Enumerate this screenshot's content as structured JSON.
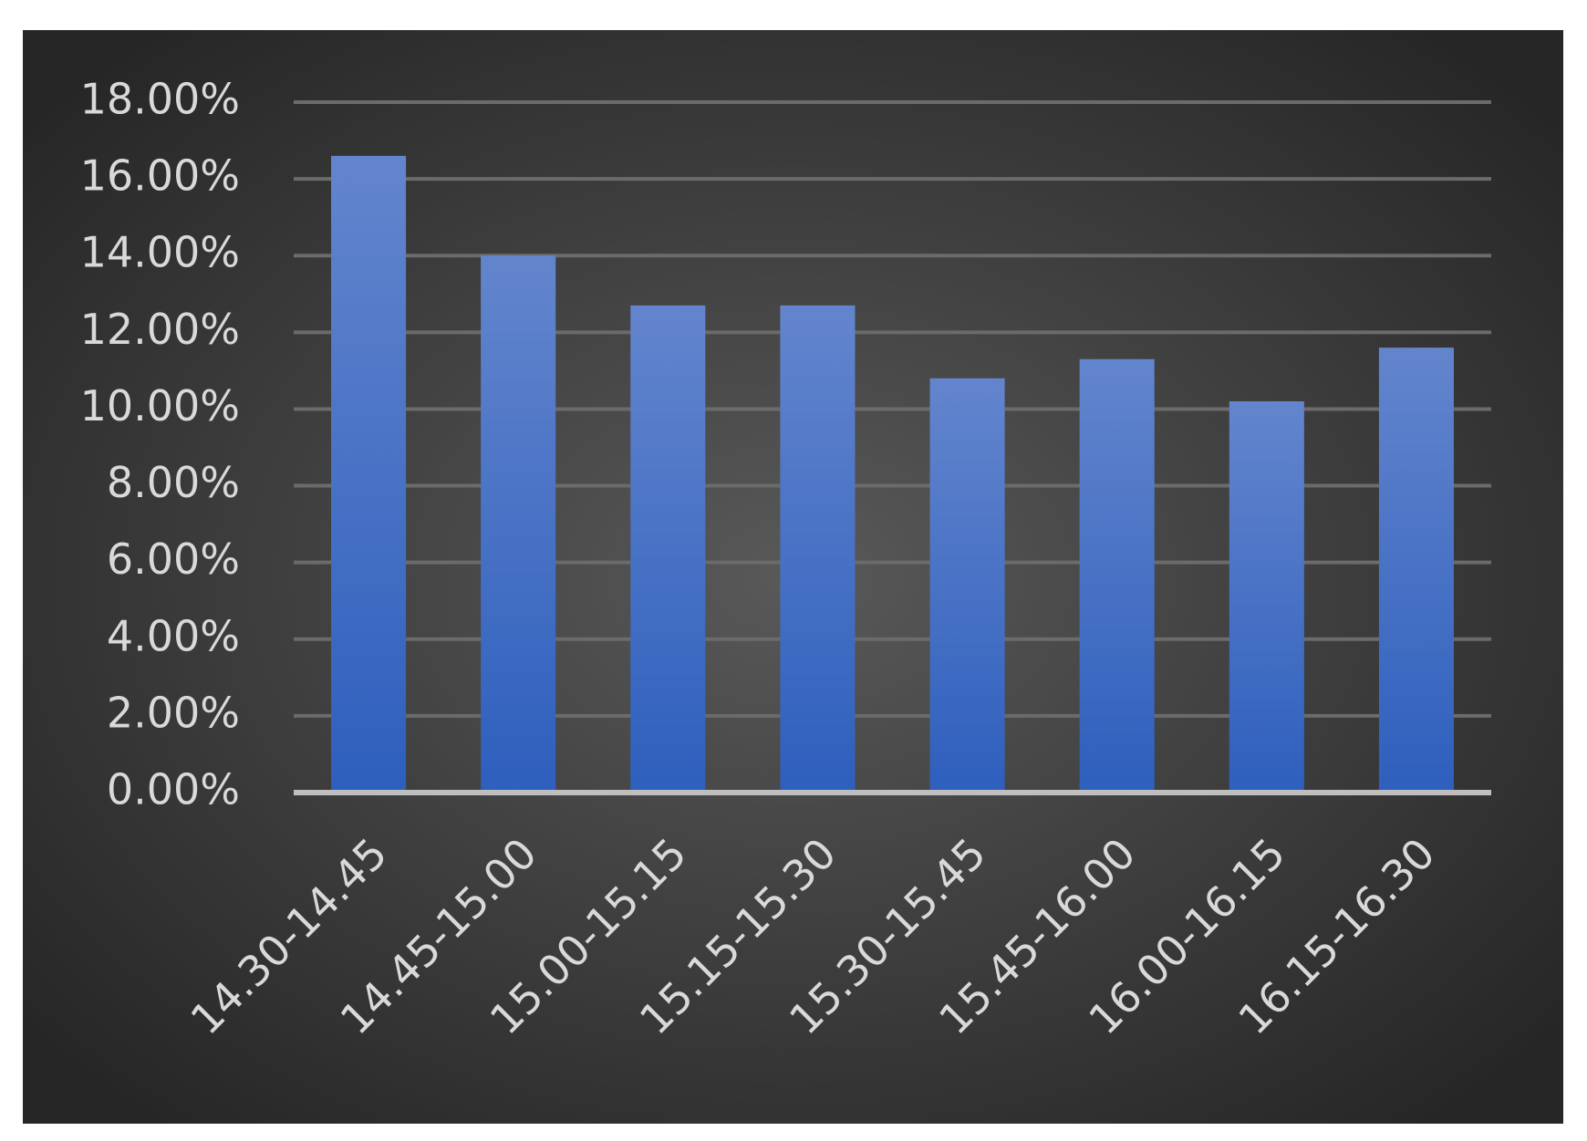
{
  "chart_data": {
    "type": "bar",
    "categories": [
      "14.30-14.45",
      "14.45-15.00",
      "15.00-15.15",
      "15.15-15.30",
      "15.30-15.45",
      "15.45-16.00",
      "16.00-16.15",
      "16.15-16.30"
    ],
    "values": [
      16.6,
      14.0,
      12.7,
      12.7,
      10.8,
      11.3,
      10.2,
      11.6
    ],
    "color": "#4472c4",
    "ylim": [
      0,
      18
    ],
    "yticks": [
      {
        "value": 0,
        "label": "0.00%"
      },
      {
        "value": 2,
        "label": "2.00%"
      },
      {
        "value": 4,
        "label": "4.00%"
      },
      {
        "value": 6,
        "label": "6.00%"
      },
      {
        "value": 8,
        "label": "8.00%"
      },
      {
        "value": 10,
        "label": "10.00%"
      },
      {
        "value": 12,
        "label": "12.00%"
      },
      {
        "value": 14,
        "label": "14.00%"
      },
      {
        "value": 16,
        "label": "16.00%"
      },
      {
        "value": 18,
        "label": "18.00%"
      }
    ],
    "grid": true
  }
}
